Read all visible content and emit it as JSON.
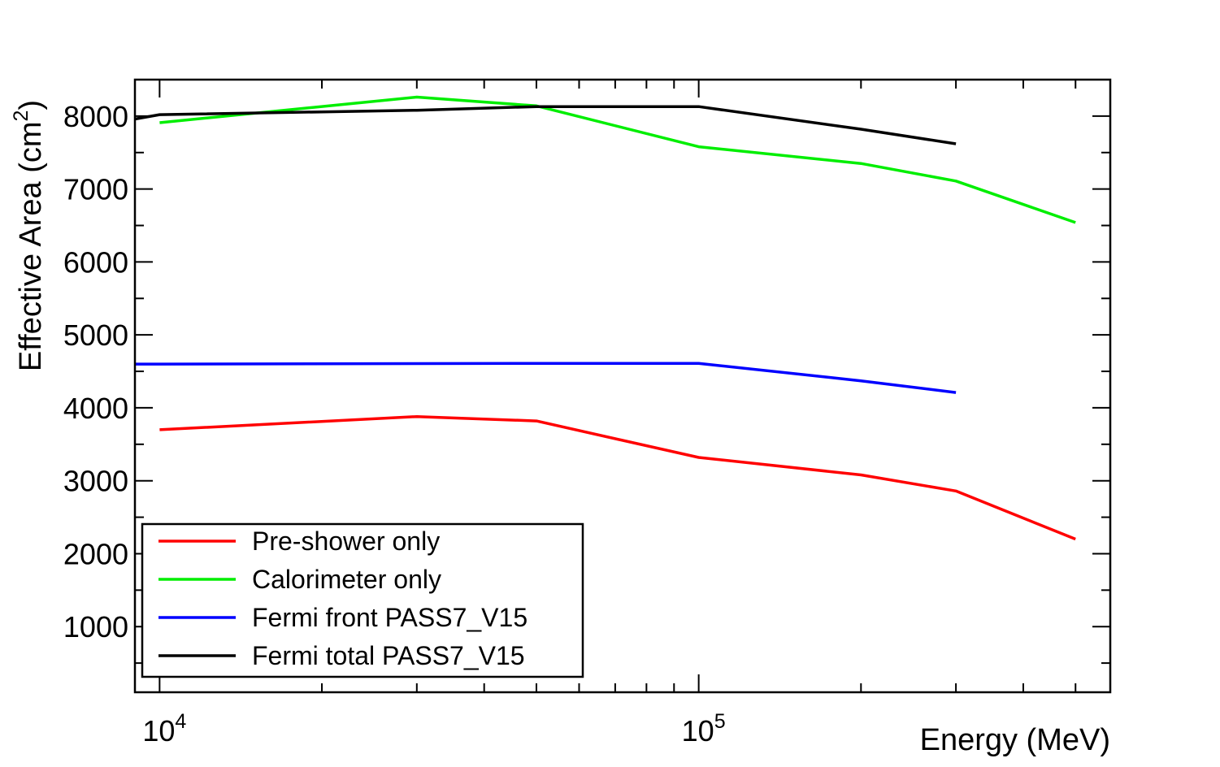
{
  "chart_data": {
    "type": "line",
    "title": "",
    "xlabel": "Energy (MeV)",
    "ylabel": "Effective Area (cm",
    "ylabel_superscript": "2",
    "ylabel_close": ")",
    "xscale": "log",
    "xlim": [
      9000,
      580000
    ],
    "ylim": [
      100,
      8500
    ],
    "x_ticks": [
      {
        "value": 10000,
        "base": "10",
        "exp": "4"
      },
      {
        "value": 100000,
        "base": "10",
        "exp": "5"
      }
    ],
    "y_ticks": [
      {
        "value": 1000,
        "label": "1000"
      },
      {
        "value": 2000,
        "label": "2000"
      },
      {
        "value": 3000,
        "label": "3000"
      },
      {
        "value": 4000,
        "label": "4000"
      },
      {
        "value": 5000,
        "label": "5000"
      },
      {
        "value": 6000,
        "label": "6000"
      },
      {
        "value": 7000,
        "label": "7000"
      },
      {
        "value": 8000,
        "label": "8000"
      }
    ],
    "legend_position": "bottom-left",
    "series": [
      {
        "name": "Pre-shower only",
        "color": "#ff0000",
        "points": [
          [
            10000,
            3700
          ],
          [
            30000,
            3880
          ],
          [
            50000,
            3820
          ],
          [
            100000,
            3320
          ],
          [
            200000,
            3080
          ],
          [
            300000,
            2860
          ],
          [
            500000,
            2200
          ]
        ]
      },
      {
        "name": "Calorimeter only",
        "color": "#00ee00",
        "points": [
          [
            10000,
            7910
          ],
          [
            30000,
            8260
          ],
          [
            50000,
            8140
          ],
          [
            100000,
            7580
          ],
          [
            200000,
            7350
          ],
          [
            300000,
            7110
          ],
          [
            500000,
            6540
          ]
        ]
      },
      {
        "name": "Fermi front PASS7_V15",
        "color": "#0000ff",
        "points": [
          [
            9000,
            4600
          ],
          [
            10000,
            4600
          ],
          [
            50000,
            4610
          ],
          [
            100000,
            4610
          ],
          [
            200000,
            4370
          ],
          [
            300000,
            4210
          ]
        ]
      },
      {
        "name": "Fermi total PASS7_V15",
        "color": "#000000",
        "points": [
          [
            9000,
            7960
          ],
          [
            10000,
            8020
          ],
          [
            30000,
            8080
          ],
          [
            50000,
            8130
          ],
          [
            100000,
            8130
          ],
          [
            200000,
            7820
          ],
          [
            300000,
            7620
          ]
        ]
      }
    ]
  }
}
